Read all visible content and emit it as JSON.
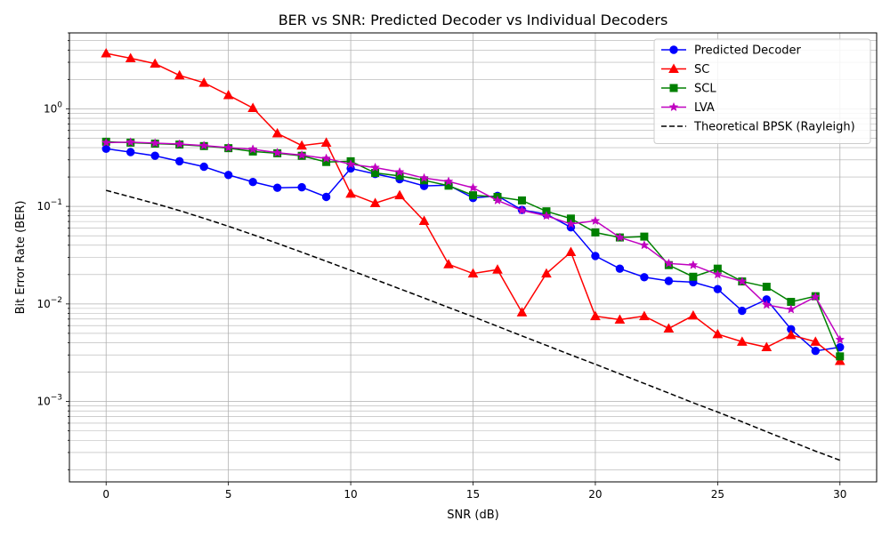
{
  "chart_data": {
    "type": "line",
    "title": "BER vs SNR: Predicted Decoder vs Individual Decoders",
    "xlabel": "SNR (dB)",
    "ylabel": "Bit Error Rate (BER)",
    "xlim": [
      -1.5,
      31.5
    ],
    "ylim": [
      0.00015,
      6
    ],
    "yscale": "log",
    "grid": true,
    "legend_position": "top-right",
    "x_ticks": [
      0,
      5,
      10,
      15,
      20,
      25,
      30
    ],
    "x_tick_labels": [
      "0",
      "5",
      "10",
      "15",
      "20",
      "25",
      "30"
    ],
    "y_ticks": [
      0.001,
      0.01,
      0.1,
      1
    ],
    "y_tick_labels": [
      {
        "base": "10",
        "exp": "−3"
      },
      {
        "base": "10",
        "exp": "−2"
      },
      {
        "base": "10",
        "exp": "−1"
      },
      {
        "base": "10",
        "exp": "0"
      }
    ],
    "x": [
      0,
      1,
      2,
      3,
      4,
      5,
      6,
      7,
      8,
      9,
      10,
      11,
      12,
      13,
      14,
      15,
      16,
      17,
      18,
      19,
      20,
      21,
      22,
      23,
      24,
      25,
      26,
      27,
      28,
      29,
      30
    ],
    "series": [
      {
        "name": "Predicted Decoder",
        "color": "#0000ff",
        "marker": "circle",
        "dashed": false,
        "values": [
          0.39,
          0.36,
          0.33,
          0.29,
          0.255,
          0.21,
          0.178,
          0.155,
          0.157,
          0.125,
          0.245,
          0.215,
          0.19,
          0.162,
          0.165,
          0.122,
          0.128,
          0.092,
          0.083,
          0.061,
          0.031,
          0.023,
          0.0188,
          0.0172,
          0.0167,
          0.0142,
          0.0085,
          0.0111,
          0.0055,
          0.0033,
          0.0036
        ]
      },
      {
        "name": "SC",
        "color": "#ff0000",
        "marker": "triangle",
        "dashed": false,
        "values": [
          3.7,
          3.3,
          2.9,
          2.2,
          1.85,
          1.38,
          1.02,
          0.56,
          0.42,
          0.45,
          0.135,
          0.108,
          0.13,
          0.071,
          0.0255,
          0.0205,
          0.0225,
          0.0082,
          0.0205,
          0.034,
          0.0075,
          0.0069,
          0.0075,
          0.0056,
          0.0076,
          0.0049,
          0.0041,
          0.0036,
          0.0048,
          0.0041,
          0.0026
        ]
      },
      {
        "name": "SCL",
        "color": "#008000",
        "marker": "square",
        "dashed": false,
        "values": [
          0.46,
          0.45,
          0.44,
          0.43,
          0.415,
          0.395,
          0.365,
          0.35,
          0.33,
          0.285,
          0.29,
          0.22,
          0.205,
          0.185,
          0.163,
          0.13,
          0.125,
          0.115,
          0.089,
          0.075,
          0.054,
          0.048,
          0.049,
          0.025,
          0.019,
          0.023,
          0.017,
          0.015,
          0.0105,
          0.012,
          0.0029
        ]
      },
      {
        "name": "LVA",
        "color": "#c000c0",
        "marker": "star",
        "dashed": false,
        "values": [
          0.45,
          0.455,
          0.445,
          0.435,
          0.42,
          0.4,
          0.385,
          0.355,
          0.335,
          0.31,
          0.27,
          0.25,
          0.225,
          0.195,
          0.18,
          0.155,
          0.115,
          0.091,
          0.08,
          0.066,
          0.071,
          0.048,
          0.04,
          0.026,
          0.025,
          0.02,
          0.017,
          0.0098,
          0.0088,
          0.0118,
          0.0043
        ]
      },
      {
        "name": "Theoretical BPSK (Rayleigh)",
        "color": "#000000",
        "marker": "none",
        "dashed": true,
        "values": [
          0.146,
          0.125,
          0.107,
          0.0905,
          0.0755,
          0.0625,
          0.0513,
          0.0418,
          0.0339,
          0.0274,
          0.0221,
          0.0178,
          0.0143,
          0.0115,
          0.0092,
          0.0074,
          0.0059,
          0.0047,
          0.00376,
          0.003,
          0.00241,
          0.00192,
          0.00153,
          0.00122,
          0.00097,
          0.00078,
          0.00062,
          0.00049,
          0.00039,
          0.00031,
          0.00025
        ]
      }
    ]
  }
}
